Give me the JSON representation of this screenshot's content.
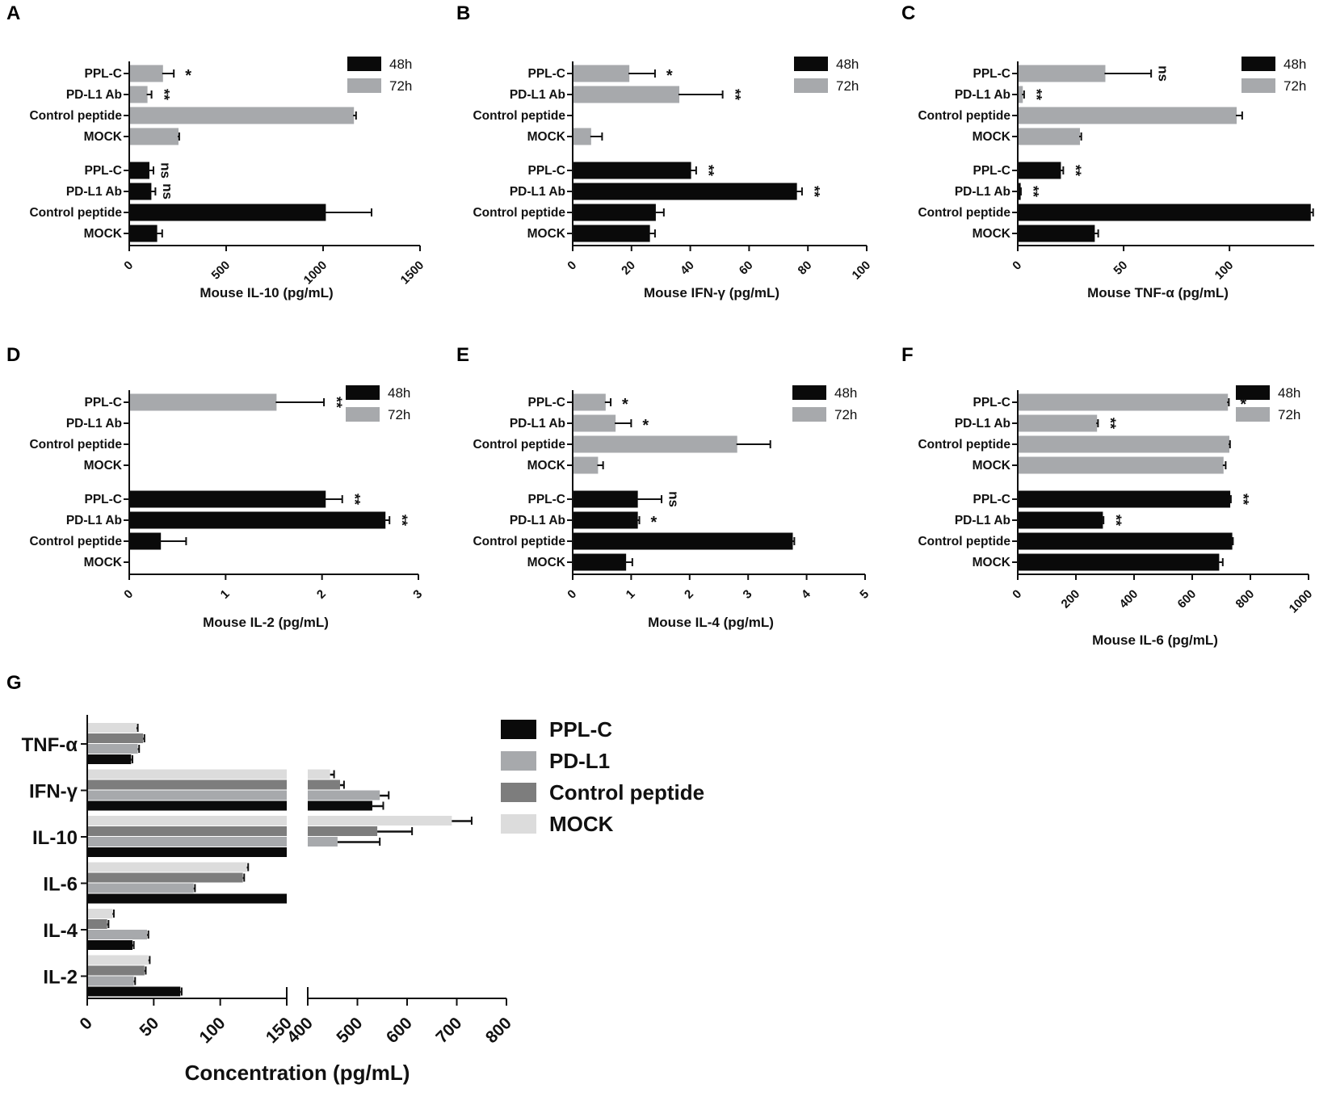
{
  "colors": {
    "h48": "#0a0a0a",
    "h72": "#a7a9ac",
    "ppl_c": "#0a0a0a",
    "pd_l1": "#a7a9ac",
    "control": "#7d7d7d",
    "mock": "#dcdcdc",
    "axis": "#111111"
  },
  "chart_data": [
    {
      "panel": "A",
      "type": "bar",
      "orientation": "horizontal",
      "xlabel": "Mouse IL-10 (pg/mL)",
      "xlim": [
        0,
        1500
      ],
      "ticks": [
        0,
        500,
        1000,
        1500
      ],
      "legend": [
        "48h",
        "72h"
      ],
      "legend_position": "top-right",
      "groups": [
        {
          "series": "72h",
          "rows": [
            {
              "label": "PPL-C",
              "value": 170,
              "err": 60,
              "sig": "*"
            },
            {
              "label": "PD-L1 Ab",
              "value": 90,
              "err": 25,
              "sig": "**"
            },
            {
              "label": "Control peptide",
              "value": 1155,
              "err": 15,
              "sig": ""
            },
            {
              "label": "MOCK",
              "value": 250,
              "err": 8,
              "sig": ""
            }
          ]
        },
        {
          "series": "48h",
          "rows": [
            {
              "label": "PPL-C",
              "value": 100,
              "err": 25,
              "sig": "ns"
            },
            {
              "label": "PD-L1 Ab",
              "value": 110,
              "err": 25,
              "sig": "ns"
            },
            {
              "label": "Control peptide",
              "value": 1010,
              "err": 240,
              "sig": ""
            },
            {
              "label": "MOCK",
              "value": 140,
              "err": 30,
              "sig": ""
            }
          ]
        }
      ]
    },
    {
      "panel": "B",
      "type": "bar",
      "orientation": "horizontal",
      "xlabel": "Mouse IFN-γ (pg/mL)",
      "xlim": [
        0,
        100
      ],
      "ticks": [
        0,
        20,
        40,
        60,
        80,
        100
      ],
      "legend": [
        "48h",
        "72h"
      ],
      "legend_position": "top-right",
      "groups": [
        {
          "series": "72h",
          "rows": [
            {
              "label": "PPL-C",
              "value": 19,
              "err": 9,
              "sig": "*"
            },
            {
              "label": "PD-L1 Ab",
              "value": 36,
              "err": 15,
              "sig": "**"
            },
            {
              "label": "Control peptide",
              "value": 0,
              "err": 0,
              "sig": ""
            },
            {
              "label": "MOCK",
              "value": 6,
              "err": 4,
              "sig": ""
            }
          ]
        },
        {
          "series": "48h",
          "rows": [
            {
              "label": "PPL-C",
              "value": 40,
              "err": 2,
              "sig": "**"
            },
            {
              "label": "PD-L1 Ab",
              "value": 76,
              "err": 2,
              "sig": "**"
            },
            {
              "label": "Control peptide",
              "value": 28,
              "err": 3,
              "sig": ""
            },
            {
              "label": "MOCK",
              "value": 26,
              "err": 2,
              "sig": ""
            }
          ]
        }
      ]
    },
    {
      "panel": "C",
      "type": "bar",
      "orientation": "horizontal",
      "xlabel": "Mouse TNF-α (pg/mL)",
      "xlim": [
        0,
        140
      ],
      "ticks": [
        0,
        50,
        100
      ],
      "legend": [
        "48h",
        "72h"
      ],
      "legend_position": "top-right",
      "groups": [
        {
          "series": "72h",
          "rows": [
            {
              "label": "PPL-C",
              "value": 41,
              "err": 22,
              "sig": "ns"
            },
            {
              "label": "PD-L1 Ab",
              "value": 2,
              "err": 1,
              "sig": "**"
            },
            {
              "label": "Control peptide",
              "value": 103,
              "err": 3,
              "sig": ""
            },
            {
              "label": "MOCK",
              "value": 29,
              "err": 1,
              "sig": ""
            }
          ]
        },
        {
          "series": "48h",
          "rows": [
            {
              "label": "PPL-C",
              "value": 20,
              "err": 1.5,
              "sig": "**"
            },
            {
              "label": "PD-L1 Ab",
              "value": 1,
              "err": 0.5,
              "sig": "**"
            },
            {
              "label": "Control peptide",
              "value": 138,
              "err": 1.5,
              "sig": ""
            },
            {
              "label": "MOCK",
              "value": 36,
              "err": 2,
              "sig": ""
            }
          ]
        }
      ]
    },
    {
      "panel": "D",
      "type": "bar",
      "orientation": "horizontal",
      "xlabel": "Mouse IL-2 (pg/mL)",
      "xlim": [
        0,
        3
      ],
      "ticks": [
        0,
        1,
        2,
        3
      ],
      "legend": [
        "48h",
        "72h"
      ],
      "legend_position": "top-right",
      "groups": [
        {
          "series": "72h",
          "rows": [
            {
              "label": "PPL-C",
              "value": 1.52,
              "err": 0.5,
              "sig": "**"
            },
            {
              "label": "PD-L1 Ab",
              "value": 0,
              "err": 0,
              "sig": ""
            },
            {
              "label": "Control peptide",
              "value": 0,
              "err": 0,
              "sig": ""
            },
            {
              "label": "MOCK",
              "value": 0,
              "err": 0,
              "sig": ""
            }
          ]
        },
        {
          "series": "48h",
          "rows": [
            {
              "label": "PPL-C",
              "value": 2.03,
              "err": 0.18,
              "sig": "**"
            },
            {
              "label": "PD-L1 Ab",
              "value": 2.65,
              "err": 0.05,
              "sig": "**"
            },
            {
              "label": "Control peptide",
              "value": 0.32,
              "err": 0.27,
              "sig": ""
            },
            {
              "label": "MOCK",
              "value": 0,
              "err": 0,
              "sig": ""
            }
          ]
        }
      ]
    },
    {
      "panel": "E",
      "type": "bar",
      "orientation": "horizontal",
      "xlabel": "Mouse IL-4 (pg/mL)",
      "xlim": [
        0,
        5
      ],
      "ticks": [
        0,
        1,
        2,
        3,
        4,
        5
      ],
      "legend": [
        "48h",
        "72h"
      ],
      "legend_position": "top-right",
      "groups": [
        {
          "series": "72h",
          "rows": [
            {
              "label": "PPL-C",
              "value": 0.55,
              "err": 0.1,
              "sig": "*"
            },
            {
              "label": "PD-L1 Ab",
              "value": 0.72,
              "err": 0.28,
              "sig": "*"
            },
            {
              "label": "Control peptide",
              "value": 2.8,
              "err": 0.58,
              "sig": ""
            },
            {
              "label": "MOCK",
              "value": 0.42,
              "err": 0.1,
              "sig": ""
            }
          ]
        },
        {
          "series": "48h",
          "rows": [
            {
              "label": "PPL-C",
              "value": 1.1,
              "err": 0.42,
              "sig": "ns"
            },
            {
              "label": "PD-L1 Ab",
              "value": 1.1,
              "err": 0.04,
              "sig": "*"
            },
            {
              "label": "Control peptide",
              "value": 3.75,
              "err": 0.04,
              "sig": ""
            },
            {
              "label": "MOCK",
              "value": 0.9,
              "err": 0.12,
              "sig": ""
            }
          ]
        }
      ]
    },
    {
      "panel": "F",
      "type": "bar",
      "orientation": "horizontal",
      "xlabel": "Mouse IL-6 (pg/mL)",
      "xlim": [
        0,
        1000
      ],
      "ticks": [
        0,
        200,
        400,
        600,
        800,
        1000
      ],
      "legend": [
        "48h",
        "72h"
      ],
      "legend_position": "top-right",
      "groups": [
        {
          "series": "72h",
          "rows": [
            {
              "label": "PPL-C",
              "value": 720,
              "err": 6,
              "sig": "*"
            },
            {
              "label": "PD-L1 Ab",
              "value": 270,
              "err": 6,
              "sig": "**"
            },
            {
              "label": "Control peptide",
              "value": 725,
              "err": 5,
              "sig": ""
            },
            {
              "label": "MOCK",
              "value": 705,
              "err": 10,
              "sig": ""
            }
          ]
        },
        {
          "series": "48h",
          "rows": [
            {
              "label": "PPL-C",
              "value": 728,
              "err": 5,
              "sig": "**"
            },
            {
              "label": "PD-L1 Ab",
              "value": 290,
              "err": 5,
              "sig": "**"
            },
            {
              "label": "Control peptide",
              "value": 735,
              "err": 5,
              "sig": ""
            },
            {
              "label": "MOCK",
              "value": 690,
              "err": 15,
              "sig": ""
            }
          ]
        }
      ]
    },
    {
      "panel": "G",
      "type": "bar",
      "orientation": "horizontal",
      "broken_axis": true,
      "xlabel": "Concentration (pg/mL)",
      "segments": [
        {
          "range": [
            0,
            150
          ],
          "ticks": [
            0,
            50,
            100,
            150
          ]
        },
        {
          "range": [
            400,
            800
          ],
          "ticks": [
            400,
            500,
            600,
            700,
            800
          ]
        }
      ],
      "legend": [
        "PPL-C",
        "PD-L1",
        "Control peptide",
        "MOCK"
      ],
      "legend_position": "right",
      "categories": [
        {
          "label": "TNF-α",
          "values": {
            "PPL-C": 33,
            "PD-L1": 38,
            "Control peptide": 42,
            "MOCK": 37
          },
          "err": {
            "PPL-C": 1,
            "PD-L1": 1,
            "Control peptide": 1,
            "MOCK": 1
          }
        },
        {
          "label": "IFN-γ",
          "values": {
            "PPL-C": 530,
            "PD-L1": 545,
            "Control peptide": 465,
            "MOCK": 445
          },
          "err": {
            "PPL-C": 22,
            "PD-L1": 18,
            "Control peptide": 8,
            "MOCK": 8
          }
        },
        {
          "label": "IL-10",
          "values": {
            "PPL-C": 150,
            "PD-L1": 460,
            "Control peptide": 540,
            "MOCK": 690
          },
          "err": {
            "PPL-C": 0,
            "PD-L1": 85,
            "Control peptide": 70,
            "MOCK": 40
          }
        },
        {
          "label": "IL-6",
          "values": {
            "PPL-C": 150,
            "PD-L1": 80,
            "Control peptide": 117,
            "MOCK": 120
          },
          "err": {
            "PPL-C": 0,
            "PD-L1": 1,
            "Control peptide": 1,
            "MOCK": 1
          }
        },
        {
          "label": "IL-4",
          "values": {
            "PPL-C": 34,
            "PD-L1": 45,
            "Control peptide": 15,
            "MOCK": 19
          },
          "err": {
            "PPL-C": 1,
            "PD-L1": 1,
            "Control peptide": 1,
            "MOCK": 1
          }
        },
        {
          "label": "IL-2",
          "values": {
            "PPL-C": 70,
            "PD-L1": 35,
            "Control peptide": 43,
            "MOCK": 46
          },
          "err": {
            "PPL-C": 1,
            "PD-L1": 1,
            "Control peptide": 1,
            "MOCK": 1
          }
        }
      ]
    }
  ]
}
